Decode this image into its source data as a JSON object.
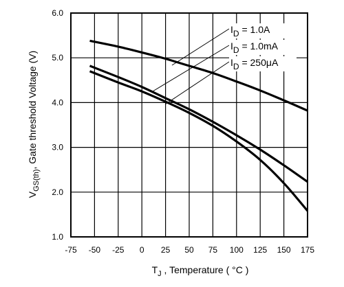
{
  "chart_data": {
    "type": "line",
    "title": "",
    "xlabel": {
      "main": "T",
      "sub": "J",
      "rest": " , Temperature ( °C )"
    },
    "ylabel": {
      "main": "V",
      "sub": "GS(th)",
      "rest": ", Gate threshold Voltage (V)"
    },
    "xlim": [
      -75,
      175
    ],
    "ylim": [
      1.0,
      6.0
    ],
    "xticks": [
      "-75",
      "-50",
      "-25",
      "0",
      "25",
      "50",
      "75",
      "100",
      "125",
      "150",
      "175"
    ],
    "yticks": [
      "6.0",
      "5.0",
      "4.0",
      "3.0",
      "2.0",
      "1.0"
    ],
    "grid": true,
    "series": [
      {
        "name": "ID = 1.0A",
        "label": {
          "main": "I",
          "sub": "D",
          "rest": " = 1.0A"
        },
        "x": [
          -55,
          -25,
          0,
          25,
          50,
          75,
          100,
          125,
          150,
          175
        ],
        "y": [
          5.38,
          5.25,
          5.12,
          4.98,
          4.82,
          4.66,
          4.47,
          4.27,
          4.05,
          3.82
        ]
      },
      {
        "name": "ID = 1.0mA",
        "label": {
          "main": "I",
          "sub": "D",
          "rest": " = 1.0mA"
        },
        "x": [
          -55,
          -25,
          0,
          25,
          50,
          75,
          100,
          125,
          150,
          175
        ],
        "y": [
          4.82,
          4.57,
          4.35,
          4.1,
          3.85,
          3.57,
          3.27,
          2.95,
          2.6,
          2.23
        ]
      },
      {
        "name": "ID = 250μA",
        "label": {
          "main": "I",
          "sub": "D",
          "rest": " = 250μA"
        },
        "x": [
          -55,
          -25,
          0,
          25,
          50,
          75,
          100,
          125,
          150,
          175
        ],
        "y": [
          4.7,
          4.45,
          4.25,
          4.02,
          3.77,
          3.48,
          3.13,
          2.72,
          2.2,
          1.58
        ]
      }
    ]
  }
}
